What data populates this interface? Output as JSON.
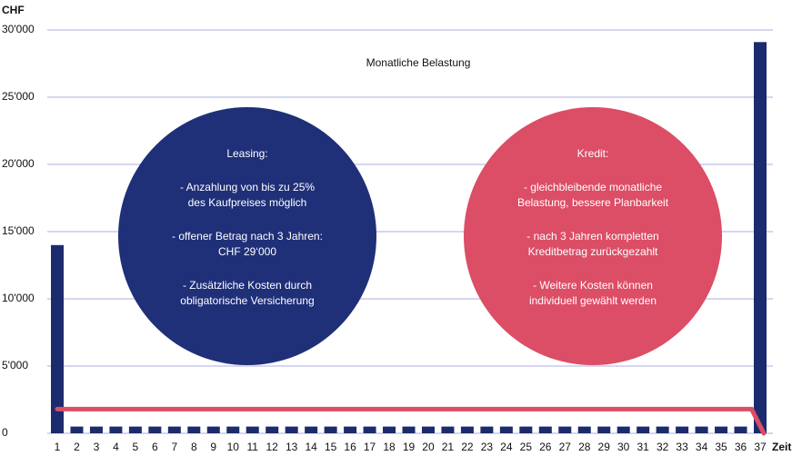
{
  "chart_data": {
    "type": "bar",
    "title": "Monatliche Belastung",
    "y_label": "CHF",
    "x_label": "Zeit",
    "categories": [
      "1",
      "2",
      "3",
      "4",
      "5",
      "6",
      "7",
      "8",
      "9",
      "10",
      "11",
      "12",
      "13",
      "14",
      "15",
      "16",
      "17",
      "18",
      "19",
      "20",
      "21",
      "22",
      "23",
      "24",
      "25",
      "26",
      "27",
      "28",
      "29",
      "30",
      "31",
      "32",
      "33",
      "34",
      "35",
      "36",
      "37"
    ],
    "series": [
      {
        "type": "bar",
        "color": "#1b2b6d",
        "values": [
          14000,
          500,
          500,
          500,
          500,
          500,
          500,
          500,
          500,
          500,
          500,
          500,
          500,
          500,
          500,
          500,
          500,
          500,
          500,
          500,
          500,
          500,
          500,
          500,
          500,
          500,
          500,
          500,
          500,
          500,
          500,
          500,
          500,
          500,
          500,
          500,
          29100
        ]
      },
      {
        "type": "line",
        "color": "#dc4d66",
        "values": [
          1800,
          1800,
          1800,
          1800,
          1800,
          1800,
          1800,
          1800,
          1800,
          1800,
          1800,
          1800,
          1800,
          1800,
          1800,
          1800,
          1800,
          1800,
          1800,
          1800,
          1800,
          1800,
          1800,
          1800,
          1800,
          1800,
          1800,
          1800,
          1800,
          1800,
          1800,
          1800,
          1800,
          1800,
          1800,
          1800,
          0
        ]
      }
    ],
    "ylim": [
      0,
      30000
    ],
    "yticks": [
      0,
      {
        "value": 5000,
        "label": "5'000"
      },
      {
        "value": 10000,
        "label": "10'000"
      },
      {
        "value": 15000,
        "label": "15'000"
      },
      {
        "value": 20000,
        "label": "20'000"
      },
      {
        "value": 25000,
        "label": "25'000"
      },
      {
        "value": 30000,
        "label": "30'000"
      }
    ],
    "grid": true,
    "annotations": [
      {
        "color": "#1f2f78",
        "paragraphs": [
          [
            "Leasing:"
          ],
          [
            "- Anzahlung von bis zu 25%",
            "des Kaufpreises möglich"
          ],
          [
            "- offener Betrag nach 3 Jahren:",
            "CHF 29‘000"
          ],
          [
            "- Zusätzliche Kosten durch",
            "obligatorische Versicherung"
          ]
        ]
      },
      {
        "color": "#dc4d66",
        "paragraphs": [
          [
            "Kredit:"
          ],
          [
            "- gleichbleibende monatliche",
            "Belastung, bessere Planbarkeit"
          ],
          [
            "- nach 3 Jahren kompletten",
            "Kreditbetrag zurückgezahlt"
          ],
          [
            "- Weitere Kosten können",
            "individuell gewählt werden"
          ]
        ]
      }
    ]
  }
}
